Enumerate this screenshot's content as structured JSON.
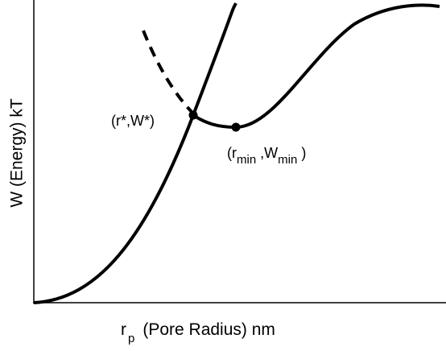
{
  "axes": {
    "y_label": "W (Energy) kT",
    "x_label": {
      "symbol": "r",
      "subscript": "p",
      "text": "(Pore Radius) nm"
    }
  },
  "points": [
    {
      "label": "(r*,W*)"
    },
    {
      "label": {
        "open": "(r",
        "sub1": "min",
        "mid": " ,W",
        "sub2": "min",
        "close": " )"
      }
    }
  ]
}
